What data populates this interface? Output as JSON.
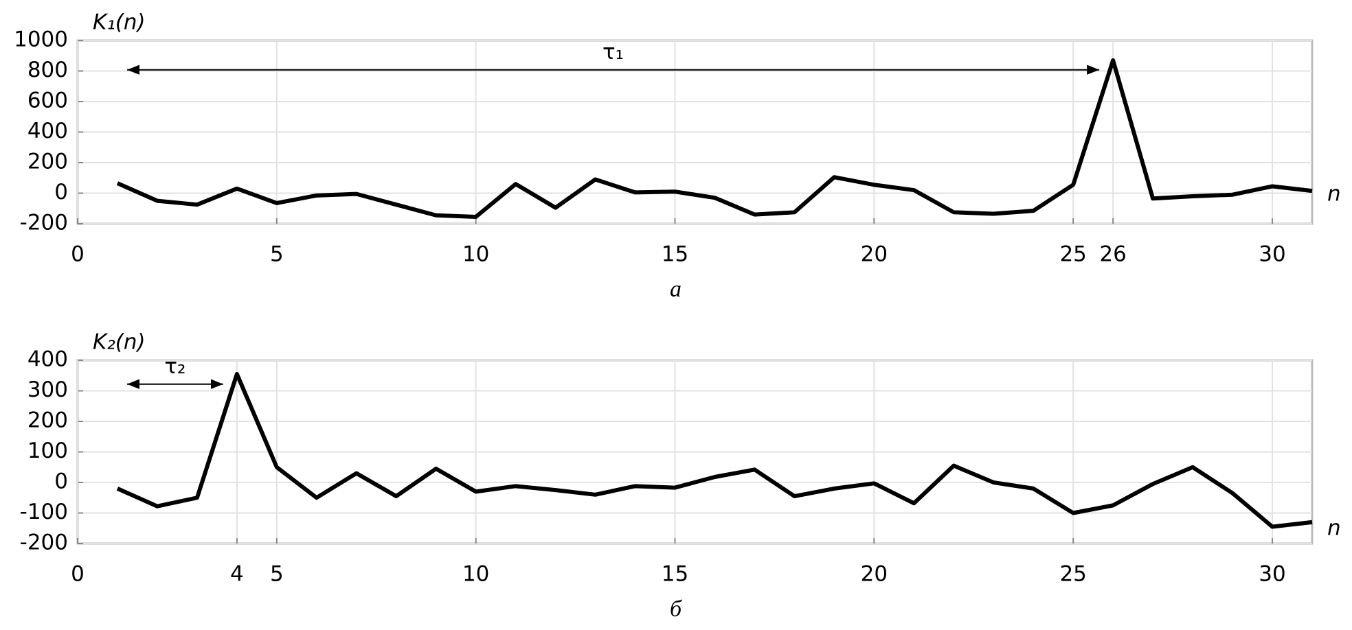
{
  "chart_data": [
    {
      "type": "line",
      "ylabel": "K₁(n)",
      "xlabel": "n",
      "caption": "а",
      "annotation": "τ₁",
      "x": [
        1,
        2,
        3,
        4,
        5,
        6,
        7,
        8,
        9,
        10,
        11,
        12,
        13,
        14,
        15,
        16,
        17,
        18,
        19,
        20,
        21,
        22,
        23,
        24,
        25,
        26,
        27,
        28,
        29,
        30,
        31
      ],
      "series": [
        {
          "color": "#000000",
          "values": [
            65,
            -50,
            -75,
            30,
            -65,
            -15,
            -5,
            -75,
            -145,
            -155,
            60,
            -95,
            90,
            5,
            10,
            -30,
            -140,
            -125,
            105,
            55,
            20,
            -125,
            -135,
            -115,
            55,
            870,
            -35,
            -20,
            -10,
            45,
            15
          ]
        }
      ],
      "xlim": [
        0,
        31
      ],
      "ylim": [
        -200,
        1000
      ],
      "xticks": [
        0,
        5,
        10,
        15,
        20,
        25,
        26,
        30
      ],
      "yticks": [
        -200,
        0,
        200,
        400,
        600,
        800,
        1000
      ],
      "grid": true
    },
    {
      "type": "line",
      "ylabel": "K₂(n)",
      "xlabel": "n",
      "caption": "б",
      "annotation": "τ₂",
      "x": [
        1,
        2,
        3,
        4,
        5,
        6,
        7,
        8,
        9,
        10,
        11,
        12,
        13,
        14,
        15,
        16,
        17,
        18,
        19,
        20,
        21,
        22,
        23,
        24,
        25,
        26,
        27,
        28,
        29,
        30,
        31
      ],
      "series": [
        {
          "color": "#000000",
          "values": [
            -20,
            -78,
            -50,
            355,
            50,
            -50,
            30,
            -45,
            45,
            -30,
            -12,
            -25,
            -40,
            -12,
            -17,
            18,
            42,
            -45,
            -20,
            -3,
            -68,
            55,
            0,
            -20,
            -100,
            -75,
            -5,
            50,
            -35,
            -145,
            -130
          ]
        }
      ],
      "xlim": [
        0,
        31
      ],
      "ylim": [
        -200,
        400
      ],
      "xticks": [
        0,
        4,
        5,
        10,
        15,
        20,
        25,
        30
      ],
      "yticks": [
        -200,
        -100,
        0,
        100,
        200,
        300,
        400
      ],
      "grid": true
    }
  ]
}
